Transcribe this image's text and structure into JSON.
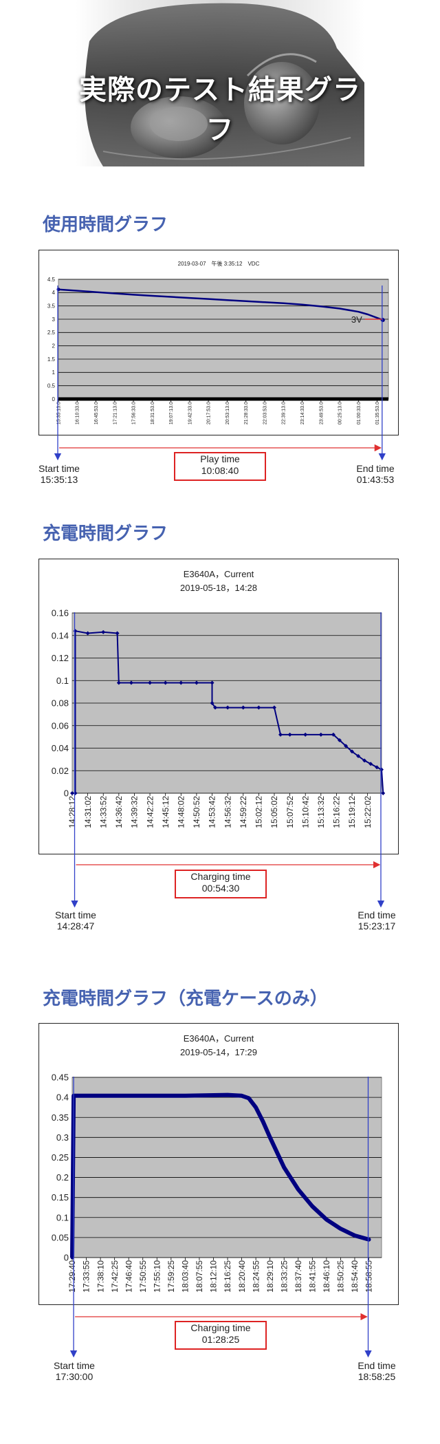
{
  "hero": {
    "title": "実際のテスト結果グラフ"
  },
  "sections": [
    {
      "title": "使用時間グラフ",
      "start_label": "Start time",
      "start_value": "15:35:13",
      "duration_label": "Play time",
      "duration_value": "10:08:40",
      "end_label": "End time",
      "end_value": "01:43:53",
      "annotation": "3V"
    },
    {
      "title": "充電時間グラフ",
      "start_label": "Start time",
      "start_value": "14:28:47",
      "duration_label": "Charging time",
      "duration_value": "00:54:30",
      "end_label": "End time",
      "end_value": "15:23:17"
    },
    {
      "title": "充電時間グラフ（充電ケースのみ）",
      "start_label": "Start time",
      "start_value": "17:30:00",
      "duration_label": "Charging time",
      "duration_value": "01:28:25",
      "end_label": "End time",
      "end_value": "18:58:25"
    }
  ],
  "colors": {
    "accent_title": "#4662b0",
    "plot_bg": "#c0c0c0",
    "series": "#000080",
    "arrow_red": "#e03030",
    "arrow_blue": "#3040c8"
  },
  "chart_data": [
    {
      "type": "line",
      "title": "2019-03-07　午後 3:35:12　VDC",
      "ylim": [
        0,
        4.5
      ],
      "y_ticks": [
        "0",
        "0.5",
        "1",
        "1.5",
        "2",
        "2.5",
        "3",
        "3.5",
        "4",
        "4.5"
      ],
      "x_ticks": [
        "15:35:13.0",
        "16:10:33.0",
        "16:45:53.0",
        "17:21:13.0",
        "17:56:33.0",
        "18:31:53.0",
        "19:07:13.0",
        "19:42:33.0",
        "20:17:53.0",
        "20:53:13.0",
        "21:28:33.0",
        "22:03:53.0",
        "22:39:13.0",
        "23:14:33.0",
        "23:49:53.0",
        "00:25:13.0",
        "01:00:33.0",
        "01:35:53.0"
      ],
      "grid": true,
      "series": [
        {
          "x": [
            0,
            1,
            2,
            3,
            4,
            5,
            6,
            7,
            8,
            9,
            10,
            11,
            12,
            13,
            14,
            15,
            16,
            16.5,
            17,
            17.3
          ],
          "values": [
            4.12,
            4.07,
            4.02,
            3.97,
            3.92,
            3.88,
            3.84,
            3.8,
            3.76,
            3.72,
            3.68,
            3.64,
            3.6,
            3.55,
            3.48,
            3.4,
            3.28,
            3.18,
            3.05,
            2.97
          ]
        }
      ]
    },
    {
      "type": "line",
      "title": "E3640A，Current",
      "subtitle": "2019-05-18，14:28",
      "ylim": [
        0,
        0.16
      ],
      "y_ticks": [
        "0",
        "0.02",
        "0.04",
        "0.06",
        "0.08",
        "0.1",
        "0.12",
        "0.14",
        "0.16"
      ],
      "x_ticks": [
        "14:28:12",
        "14:31:02",
        "14:33:52",
        "14:36:42",
        "14:39:32",
        "14:42:22",
        "14:45:12",
        "14:48:02",
        "14:50:52",
        "14:53:42",
        "14:56:32",
        "14:59:22",
        "15:02:12",
        "15:05:02",
        "15:07:52",
        "15:10:42",
        "15:13:32",
        "15:16:22",
        "15:19:12",
        "15:22:02"
      ],
      "grid": true,
      "series": [
        {
          "x": [
            0,
            0.2,
            0.2,
            1,
            2,
            2.9,
            3,
            3.8,
            5,
            6,
            7,
            8,
            9,
            9,
            9.2,
            10,
            11,
            12,
            13,
            13.4,
            14,
            15,
            16,
            16.8,
            17.2,
            17.6,
            18,
            18.4,
            18.8,
            19.2,
            19.6,
            19.9,
            20
          ],
          "values": [
            0,
            0,
            0.144,
            0.142,
            0.143,
            0.142,
            0.098,
            0.098,
            0.098,
            0.098,
            0.098,
            0.098,
            0.098,
            0.08,
            0.076,
            0.076,
            0.076,
            0.076,
            0.076,
            0.052,
            0.052,
            0.052,
            0.052,
            0.052,
            0.047,
            0.042,
            0.037,
            0.033,
            0.029,
            0.026,
            0.023,
            0.021,
            0
          ]
        }
      ]
    },
    {
      "type": "line",
      "title": "E3640A，Current",
      "subtitle": "2019-05-14，17:29",
      "ylim": [
        0,
        0.45
      ],
      "y_ticks": [
        "0",
        "0.05",
        "0.1",
        "0.15",
        "0.2",
        "0.25",
        "0.3",
        "0.35",
        "0.4",
        "0.45"
      ],
      "x_ticks": [
        "17:29:40",
        "17:33:55",
        "17:38:10",
        "17:42:25",
        "17:46:40",
        "17:50:55",
        "17:55:10",
        "17:59:25",
        "18:03:40",
        "18:07:55",
        "18:12:10",
        "18:16:25",
        "18:20:40",
        "18:24:55",
        "18:29:10",
        "18:33:25",
        "18:37:40",
        "18:41:55",
        "18:46:10",
        "18:50:25",
        "18:54:40",
        "18:58:55"
      ],
      "grid": true,
      "series": [
        {
          "x": [
            0,
            0.1,
            0.15,
            4,
            8,
            11,
            12,
            12.5,
            13,
            13.5,
            14,
            15,
            16,
            17,
            18,
            19,
            20,
            21
          ],
          "values": [
            0,
            0.404,
            0.404,
            0.404,
            0.404,
            0.406,
            0.404,
            0.398,
            0.375,
            0.34,
            0.3,
            0.225,
            0.17,
            0.128,
            0.095,
            0.072,
            0.055,
            0.045
          ]
        }
      ]
    }
  ]
}
